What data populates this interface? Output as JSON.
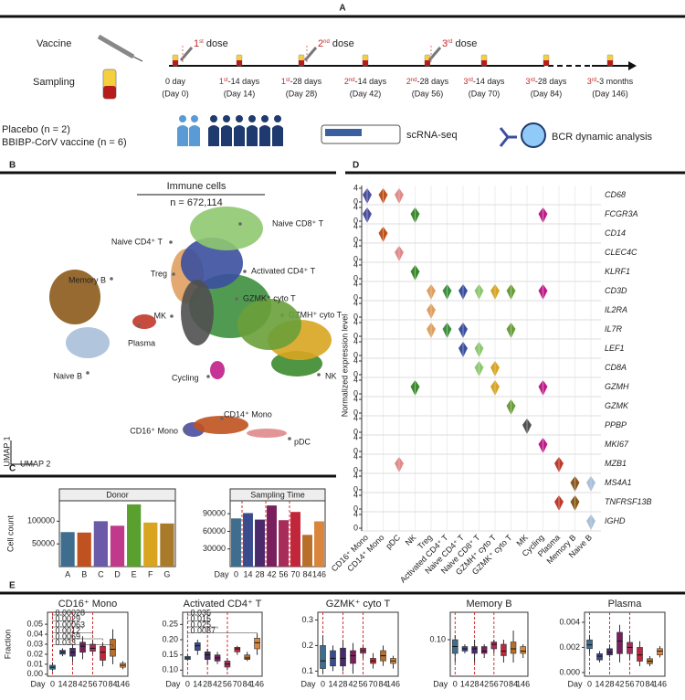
{
  "panel_labels": [
    "A",
    "B",
    "C",
    "D",
    "E"
  ],
  "design": {
    "vaccine": "Vaccine",
    "sampling": "Sampling",
    "doses": [
      {
        "ord": "1",
        "sup": "st",
        "rest": " dose"
      },
      {
        "ord": "2",
        "sup": "nd",
        "rest": " dose"
      },
      {
        "ord": "3",
        "sup": "rd",
        "rest": " dose"
      }
    ],
    "timepoints": [
      {
        "ord": "0 day",
        "day": "(Day 0)"
      },
      {
        "ord": "1",
        "sup": "st",
        "rest": "-14 days",
        "day": "(Day 14)"
      },
      {
        "ord": "1",
        "sup": "st",
        "rest": "-28 days",
        "day": "(Day 28)"
      },
      {
        "ord": "2",
        "sup": "nd",
        "rest": "-14 days",
        "day": "(Day 42)"
      },
      {
        "ord": "2",
        "sup": "nd",
        "rest": "-28 days",
        "day": "(Day 56)"
      },
      {
        "ord": "3",
        "sup": "rd",
        "rest": "-14 days",
        "day": "(Day 70)"
      },
      {
        "ord": "3",
        "sup": "rd",
        "rest": "-28 days",
        "day": "(Day 84)"
      },
      {
        "ord": "3",
        "sup": "rd",
        "rest": "-3 months",
        "day": "(Day 146)"
      }
    ],
    "groups": [
      "Placebo (n = 2)",
      "BBIBP-CorV vaccine (n = 6)"
    ],
    "methods": [
      "scRNA-seq",
      "BCR dynamic analysis"
    ]
  },
  "umap": {
    "title": "Immune cells",
    "subtitle": "n = 672,114",
    "xlabel": "UMAP 2",
    "ylabel": "UMAP 1",
    "clusters": [
      {
        "name": "CD16⁺ Mono",
        "color": "#4b4fa0"
      },
      {
        "name": "CD14⁺ Mono",
        "color": "#c0521f"
      },
      {
        "name": "pDC",
        "color": "#e08a8a"
      },
      {
        "name": "NK",
        "color": "#3c8a2e"
      },
      {
        "name": "Treg",
        "color": "#e0a060"
      },
      {
        "name": "Activated CD4⁺ T",
        "color": "#3e8f3e"
      },
      {
        "name": "Naive CD4⁺ T",
        "color": "#3a4f9e"
      },
      {
        "name": "Naive CD8⁺ T",
        "color": "#8fc870"
      },
      {
        "name": "GZMH⁺ cyto T",
        "color": "#d9a520"
      },
      {
        "name": "GZMK⁺ cyto T",
        "color": "#6aa03a"
      },
      {
        "name": "MK",
        "color": "#505050"
      },
      {
        "name": "Cycling",
        "color": "#c01e8a"
      },
      {
        "name": "Plasma",
        "color": "#c0392b"
      },
      {
        "name": "Memory B",
        "color": "#8b5a1a"
      },
      {
        "name": "Naive B",
        "color": "#a8c0d8"
      }
    ]
  },
  "expression": {
    "ylabel": "Normalized expression level",
    "row_ticks": [
      0,
      4
    ],
    "genes": [
      {
        "name": "CD68",
        "expressed": [
          0,
          1,
          2
        ]
      },
      {
        "name": "FCGR3A",
        "expressed": [
          0,
          3,
          11
        ]
      },
      {
        "name": "CD14",
        "expressed": [
          1
        ]
      },
      {
        "name": "CLEC4C",
        "expressed": [
          2
        ]
      },
      {
        "name": "KLRF1",
        "expressed": [
          3
        ]
      },
      {
        "name": "CD3D",
        "expressed": [
          4,
          5,
          6,
          7,
          8,
          9,
          11
        ]
      },
      {
        "name": "IL2RA",
        "expressed": [
          4
        ]
      },
      {
        "name": "IL7R",
        "expressed": [
          4,
          5,
          6,
          9
        ]
      },
      {
        "name": "LEF1",
        "expressed": [
          6,
          7
        ]
      },
      {
        "name": "CD8A",
        "expressed": [
          7,
          8
        ]
      },
      {
        "name": "GZMH",
        "expressed": [
          3,
          8,
          11
        ]
      },
      {
        "name": "GZMK",
        "expressed": [
          9
        ]
      },
      {
        "name": "PPBP",
        "expressed": [
          10
        ]
      },
      {
        "name": "MKI67",
        "expressed": [
          11
        ]
      },
      {
        "name": "MZB1",
        "expressed": [
          2,
          12
        ]
      },
      {
        "name": "MS4A1",
        "expressed": [
          13,
          14
        ]
      },
      {
        "name": "TNFRSF13B",
        "expressed": [
          12,
          13
        ]
      },
      {
        "name": "IGHD",
        "expressed": [
          14
        ]
      }
    ]
  },
  "chart_data": [
    {
      "type": "bar",
      "title": "Donor",
      "ylabel": "Cell count",
      "categories": [
        "A",
        "B",
        "C",
        "D",
        "E",
        "F",
        "G"
      ],
      "values": [
        76000,
        75000,
        100000,
        90000,
        137000,
        97000,
        95000
      ],
      "colors": [
        "#3e6d8e",
        "#c0521f",
        "#6a5aa8",
        "#c0398a",
        "#5aa02e",
        "#d9a520",
        "#a87a2a"
      ],
      "ylim": [
        0,
        145000
      ],
      "yticks": [
        50000,
        100000
      ]
    },
    {
      "type": "bar",
      "title": "Sampling Time",
      "xlabel": "Day",
      "categories": [
        "0",
        "14",
        "28",
        "42",
        "56",
        "70",
        "84",
        "146"
      ],
      "values": [
        82000,
        91000,
        80000,
        104000,
        79000,
        93000,
        54000,
        77000
      ],
      "colors": [
        "#3e6d8e",
        "#3b4c8e",
        "#4b2a6b",
        "#7a1f5e",
        "#a82c5a",
        "#c2263a",
        "#b86f2a",
        "#d9863c"
      ],
      "ylim": [
        0,
        112000
      ],
      "yticks": [
        30000,
        60000,
        90000
      ],
      "dose_days": [
        "0",
        "28",
        "56"
      ]
    },
    {
      "type": "box",
      "title": "CD16⁺ Mono",
      "ylabel": "Fraction",
      "xlabel": "Day",
      "categories": [
        "0",
        "14",
        "28",
        "42",
        "56",
        "70",
        "84",
        "146"
      ],
      "boxes": [
        [
          0.003,
          0.005,
          0.007,
          0.009,
          0.012
        ],
        [
          0.018,
          0.02,
          0.022,
          0.024,
          0.026
        ],
        [
          0.012,
          0.018,
          0.022,
          0.026,
          0.03
        ],
        [
          0.015,
          0.022,
          0.028,
          0.032,
          0.038
        ],
        [
          0.02,
          0.023,
          0.026,
          0.03,
          0.034
        ],
        [
          0.008,
          0.014,
          0.022,
          0.028,
          0.032
        ],
        [
          0.01,
          0.018,
          0.025,
          0.035,
          0.045
        ],
        [
          0.005,
          0.007,
          0.009,
          0.011,
          0.013
        ]
      ],
      "colors": [
        "#3e6d8e",
        "#3b4c8e",
        "#4b2a6b",
        "#7a1f5e",
        "#a82c5a",
        "#c2263a",
        "#b86f2a",
        "#d9863c"
      ],
      "ylim": [
        -0.002,
        0.062
      ],
      "yticks": [
        {
          "value": 0,
          "label": "0.00"
        },
        0.01,
        0.02,
        0.03,
        0.04,
        0.05
      ],
      "dose_days": [
        "0",
        "28",
        "56"
      ],
      "annotations": [
        {
          "text": "0.00028",
          "to": "14"
        },
        {
          "text": "0.0029",
          "to": "28"
        },
        {
          "text": "0.00063",
          "to": "42"
        },
        {
          "text": "0.0012",
          "to": "56"
        },
        {
          "text": "0.0069",
          "to": "70"
        },
        {
          "text": "0.033",
          "to": "84"
        }
      ]
    },
    {
      "type": "box",
      "title": "Activated CD4⁺ T",
      "xlabel": "Day",
      "categories": [
        "0",
        "14",
        "28",
        "42",
        "56",
        "70",
        "84",
        "146"
      ],
      "boxes": [
        [
          0.13,
          0.135,
          0.14,
          0.145,
          0.15
        ],
        [
          0.15,
          0.165,
          0.18,
          0.19,
          0.2
        ],
        [
          0.12,
          0.135,
          0.15,
          0.16,
          0.17
        ],
        [
          0.12,
          0.13,
          0.14,
          0.15,
          0.16
        ],
        [
          0.1,
          0.11,
          0.12,
          0.13,
          0.14
        ],
        [
          0.15,
          0.16,
          0.17,
          0.175,
          0.18
        ],
        [
          0.13,
          0.135,
          0.14,
          0.15,
          0.16
        ],
        [
          0.15,
          0.17,
          0.19,
          0.205,
          0.22
        ]
      ],
      "colors": [
        "#3e6d8e",
        "#3b4c8e",
        "#4b2a6b",
        "#7a1f5e",
        "#a82c5a",
        "#c2263a",
        "#b86f2a",
        "#d9863c"
      ],
      "ylim": [
        0.08,
        0.29
      ],
      "yticks": [
        {
          "value": 0.1,
          "label": "0.10"
        },
        0.15,
        {
          "value": 0.2,
          "label": "0.20"
        },
        0.25
      ],
      "dose_days": [
        "0",
        "28",
        "56"
      ],
      "annotations": [
        {
          "text": "0.035",
          "to": "14"
        },
        {
          "text": "0.015",
          "to": "28"
        },
        {
          "text": "0.025",
          "to": "42"
        },
        {
          "text": "0.0087",
          "to": "146"
        }
      ]
    },
    {
      "type": "box",
      "title": "GZMK⁺ cyto T",
      "xlabel": "Day",
      "categories": [
        "0",
        "14",
        "28",
        "42",
        "56",
        "70",
        "84",
        "146"
      ],
      "boxes": [
        [
          0.09,
          0.11,
          0.14,
          0.2,
          0.24
        ],
        [
          0.1,
          0.12,
          0.15,
          0.18,
          0.2
        ],
        [
          0.1,
          0.12,
          0.15,
          0.19,
          0.22
        ],
        [
          0.09,
          0.13,
          0.16,
          0.18,
          0.21
        ],
        [
          0.15,
          0.17,
          0.18,
          0.19,
          0.2
        ],
        [
          0.11,
          0.13,
          0.14,
          0.15,
          0.17
        ],
        [
          0.12,
          0.14,
          0.16,
          0.18,
          0.2
        ],
        [
          0.11,
          0.13,
          0.14,
          0.15,
          0.16
        ]
      ],
      "colors": [
        "#3e6d8e",
        "#3b4c8e",
        "#4b2a6b",
        "#7a1f5e",
        "#a82c5a",
        "#c2263a",
        "#b86f2a",
        "#d9863c"
      ],
      "ylim": [
        0.08,
        0.33
      ],
      "yticks": [
        0.1,
        0.2,
        0.3
      ],
      "dose_days": [
        "0",
        "28",
        "56"
      ]
    },
    {
      "type": "box",
      "title": "Memory B",
      "xlabel": "Day",
      "categories": [
        "0",
        "14",
        "28",
        "42",
        "56",
        "70",
        "84",
        "146"
      ],
      "boxes": [
        [
          0.05,
          0.07,
          0.085,
          0.1,
          0.11
        ],
        [
          0.07,
          0.075,
          0.08,
          0.085,
          0.09
        ],
        [
          0.05,
          0.07,
          0.08,
          0.085,
          0.1
        ],
        [
          0.06,
          0.07,
          0.075,
          0.085,
          0.09
        ],
        [
          0.07,
          0.08,
          0.09,
          0.095,
          0.1
        ],
        [
          0.05,
          0.065,
          0.075,
          0.09,
          0.1
        ],
        [
          0.05,
          0.07,
          0.08,
          0.095,
          0.12
        ],
        [
          0.06,
          0.07,
          0.075,
          0.085,
          0.09
        ]
      ],
      "colors": [
        "#3e6d8e",
        "#3b4c8e",
        "#4b2a6b",
        "#7a1f5e",
        "#a82c5a",
        "#c2263a",
        "#b86f2a",
        "#d9863c"
      ],
      "ylim": [
        0.02,
        0.16
      ],
      "yticks": [
        {
          "value": 0.1,
          "label": "0.10"
        }
      ],
      "dose_days": [
        "0",
        "28",
        "56"
      ]
    },
    {
      "type": "box",
      "title": "Plasma",
      "xlabel": "Day",
      "categories": [
        "0",
        "14",
        "28",
        "42",
        "56",
        "70",
        "84",
        "146"
      ],
      "boxes": [
        [
          0.0015,
          0.0019,
          0.0022,
          0.0026,
          0.003
        ],
        [
          0.0008,
          0.001,
          0.0013,
          0.0015,
          0.0017
        ],
        [
          0.0012,
          0.0014,
          0.0016,
          0.0019,
          0.0022
        ],
        [
          0.0008,
          0.0015,
          0.0025,
          0.0032,
          0.0038
        ],
        [
          0.001,
          0.0015,
          0.002,
          0.0024,
          0.003
        ],
        [
          0.0005,
          0.0009,
          0.0014,
          0.002,
          0.0025
        ],
        [
          0.0005,
          0.0007,
          0.0009,
          0.0011,
          0.0013
        ],
        [
          0.0012,
          0.0014,
          0.0017,
          0.0019,
          0.0021
        ]
      ],
      "colors": [
        "#3e6d8e",
        "#3b4c8e",
        "#4b2a6b",
        "#7a1f5e",
        "#a82c5a",
        "#c2263a",
        "#b86f2a",
        "#d9863c"
      ],
      "ylim": [
        -0.0003,
        0.0048
      ],
      "yticks": [
        {
          "value": 0,
          "label": "0.000"
        },
        0.002,
        0.004
      ],
      "dose_days": [
        "0",
        "28",
        "56"
      ]
    }
  ]
}
